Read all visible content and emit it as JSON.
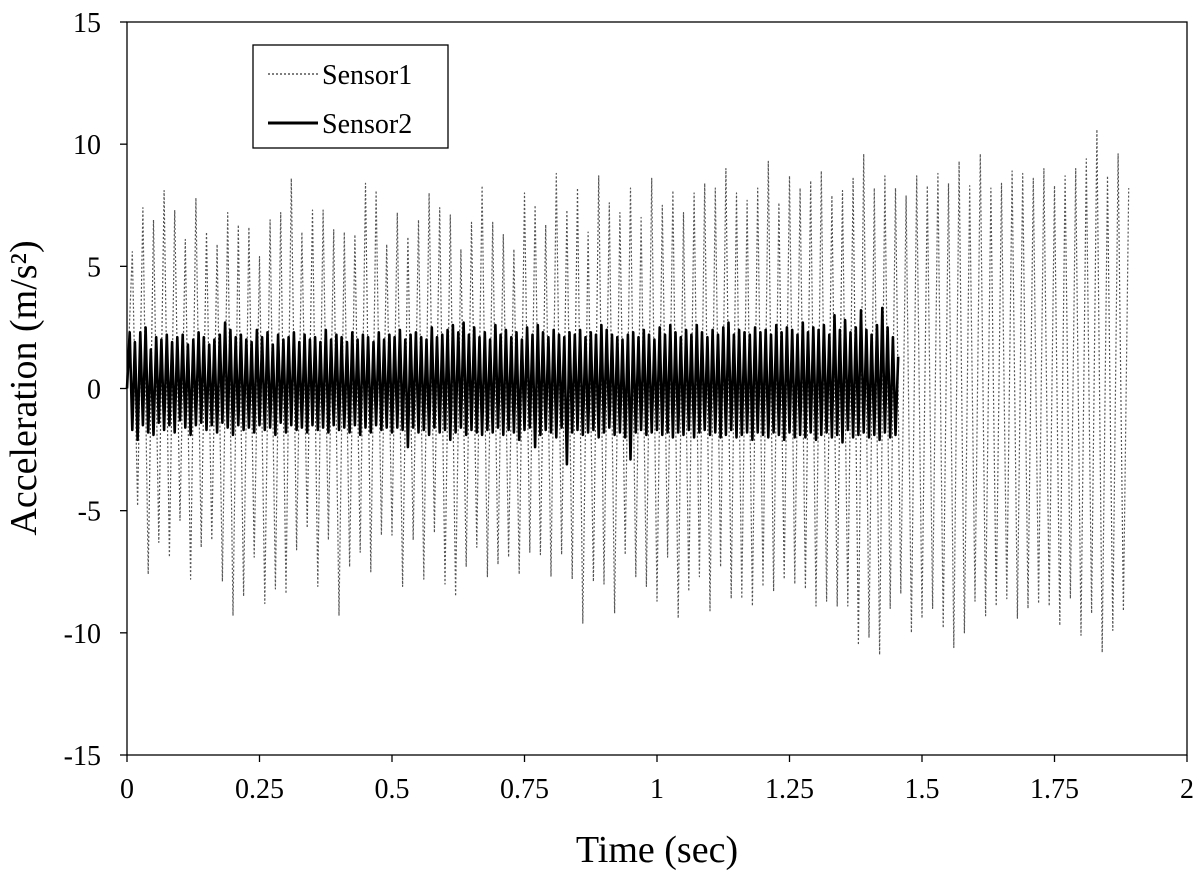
{
  "chart_data": {
    "type": "line",
    "title": "",
    "xlabel": "Time (sec)",
    "ylabel": "Acceleration (m/s²)",
    "xlim": [
      0,
      2
    ],
    "ylim": [
      -15,
      15
    ],
    "x_ticks": [
      0,
      0.25,
      0.5,
      0.75,
      1,
      1.25,
      1.5,
      1.75,
      2
    ],
    "x_tick_labels": [
      "0",
      "0.25",
      "0.5",
      "0.75",
      "1",
      "1.25",
      "1.5",
      "1.75",
      "2"
    ],
    "y_ticks": [
      15,
      10,
      5,
      0,
      -5,
      -10,
      -15
    ],
    "y_tick_labels": [
      "15",
      "10",
      "5",
      "0",
      "-5",
      "-10",
      "-15"
    ],
    "grid": false,
    "legend_position": "top-left",
    "series": [
      {
        "name": "Sensor1",
        "style": "dotted",
        "color": "#555555",
        "x_start": 0,
        "x_step": 0.01,
        "values": [
          0.0,
          5.6,
          -4.8,
          7.4,
          -7.6,
          6.9,
          -6.3,
          8.1,
          -6.9,
          7.3,
          -5.4,
          6.1,
          -7.8,
          7.8,
          -6.5,
          6.4,
          -6.2,
          5.9,
          -7.9,
          7.2,
          -9.3,
          6.7,
          -8.5,
          6.6,
          -6.9,
          5.4,
          -8.8,
          6.9,
          -8.2,
          7.2,
          -8.4,
          8.6,
          -6.6,
          6.4,
          -5.7,
          7.3,
          -8.1,
          7.3,
          -6.2,
          6.5,
          -9.3,
          6.4,
          -7.3,
          6.3,
          -6.7,
          8.4,
          -7.5,
          8.1,
          -6.0,
          5.9,
          -6.0,
          7.2,
          -8.1,
          6.2,
          -6.2,
          6.9,
          -7.8,
          8.0,
          -5.9,
          7.4,
          -8.0,
          7.1,
          -8.5,
          5.7,
          -7.3,
          6.8,
          -6.5,
          8.3,
          -7.7,
          6.8,
          -7.2,
          6.3,
          -6.9,
          5.7,
          -7.6,
          8.0,
          -6.7,
          7.5,
          -6.8,
          6.7,
          -7.7,
          8.8,
          -6.8,
          7.3,
          -7.8,
          8.2,
          -9.6,
          6.4,
          -7.9,
          8.7,
          -8.0,
          7.6,
          -9.2,
          7.2,
          -6.8,
          8.2,
          -7.7,
          7.0,
          -8.1,
          8.6,
          -8.7,
          7.5,
          -6.9,
          8.1,
          -9.4,
          7.2,
          -8.3,
          8.0,
          -7.7,
          8.4,
          -9.1,
          8.2,
          -7.3,
          9.0,
          -8.6,
          8.0,
          -8.6,
          7.7,
          -8.9,
          8.2,
          -8.1,
          9.3,
          -8.3,
          7.6,
          -7.8,
          8.7,
          -8.0,
          8.2,
          -8.2,
          8.5,
          -8.9,
          8.9,
          -8.7,
          7.9,
          -8.9,
          8.1,
          -8.9,
          8.6,
          -10.5,
          9.6,
          -10.2,
          8.2,
          -10.9,
          8.7,
          -9.0,
          8.2,
          -8.4,
          7.9,
          -10.0,
          8.7,
          -9.4,
          8.3,
          -9.0,
          8.8,
          -9.8,
          8.4,
          -10.6,
          9.3,
          -10.0,
          8.3,
          -8.7,
          9.6,
          -9.3,
          8.2,
          -8.9,
          8.4,
          -8.6,
          8.9,
          -9.4,
          8.8,
          -9.0,
          8.6,
          -8.8,
          9.0,
          -8.9,
          8.3,
          -9.7,
          8.7,
          -8.6,
          9.0,
          -10.1,
          9.4,
          -9.2,
          10.6,
          -10.8,
          8.7,
          -9.9,
          9.6,
          -9.1,
          8.2
        ]
      },
      {
        "name": "Sensor2",
        "style": "solid",
        "color": "#000000",
        "x_start": 0,
        "x_step": 0.005,
        "values": [
          0.0,
          2.3,
          -1.7,
          1.9,
          -2.1,
          2.3,
          -1.5,
          2.5,
          -1.8,
          1.6,
          -1.9,
          2.1,
          -1.4,
          2.0,
          -1.7,
          2.2,
          -1.5,
          1.9,
          -1.8,
          2.1,
          -1.3,
          2.2,
          -1.6,
          1.8,
          -1.9,
          2.0,
          -1.5,
          2.3,
          -1.4,
          2.1,
          -1.7,
          1.8,
          -1.5,
          2.0,
          -1.8,
          2.2,
          -1.4,
          2.7,
          -1.6,
          2.4,
          -1.9,
          2.1,
          -1.5,
          2.2,
          -1.7,
          2.0,
          -1.6,
          1.9,
          -1.8,
          2.4,
          -1.5,
          2.1,
          -1.7,
          2.3,
          -1.6,
          1.8,
          -1.9,
          2.2,
          -1.4,
          2.0,
          -1.8,
          2.1,
          -1.5,
          2.3,
          -1.7,
          1.9,
          -1.6,
          2.2,
          -1.8,
          2.0,
          -1.5,
          2.1,
          -1.7,
          1.9,
          -1.6,
          2.4,
          -1.8,
          2.0,
          -1.5,
          2.2,
          -1.7,
          2.1,
          -1.6,
          1.9,
          -1.8,
          2.3,
          -1.5,
          2.0,
          -1.9,
          2.2,
          -1.6,
          2.1,
          -1.8,
          1.9,
          -1.5,
          2.3,
          -1.7,
          2.0,
          -1.6,
          2.2,
          -1.8,
          2.1,
          -1.6,
          2.4,
          -1.7,
          2.0,
          -2.4,
          2.2,
          -1.6,
          2.3,
          -1.8,
          2.1,
          -1.7,
          2.0,
          -1.9,
          2.5,
          -1.6,
          2.1,
          -1.8,
          2.2,
          -1.7,
          2.4,
          -2.1,
          2.6,
          -1.8,
          2.3,
          -1.6,
          2.7,
          -1.9,
          2.2,
          -1.7,
          2.5,
          -1.8,
          2.1,
          -1.9,
          2.3,
          -1.7,
          2.0,
          -1.8,
          2.6,
          -1.6,
          2.2,
          -1.9,
          2.4,
          -1.7,
          2.1,
          -1.8,
          2.3,
          -2.1,
          2.0,
          -1.7,
          2.5,
          -1.6,
          2.2,
          -2.4,
          2.6,
          -1.9,
          2.3,
          -1.7,
          2.1,
          -1.8,
          2.4,
          -2.0,
          2.2,
          -1.6,
          2.1,
          -3.1,
          2.3,
          -1.8,
          2.2,
          -1.7,
          2.4,
          -1.9,
          2.1,
          -1.8,
          2.3,
          -1.7,
          2.2,
          -2.0,
          2.6,
          -1.8,
          2.4,
          -1.6,
          2.2,
          -1.9,
          2.1,
          -1.8,
          2.0,
          -2.0,
          2.2,
          -2.9,
          2.3,
          -1.8,
          2.1,
          -1.7,
          2.4,
          -1.9,
          2.2,
          -1.8,
          2.0,
          -1.7,
          2.5,
          -1.9,
          2.2,
          -1.8,
          2.6,
          -2.0,
          2.3,
          -1.8,
          2.1,
          -1.9,
          2.4,
          -1.7,
          2.2,
          -2.0,
          2.6,
          -1.8,
          2.3,
          -1.7,
          2.1,
          -1.9,
          2.4,
          -1.8,
          2.2,
          -2.0,
          2.5,
          -1.9,
          2.7,
          -1.7,
          2.2,
          -2.0,
          2.4,
          -1.9,
          2.3,
          -1.8,
          2.2,
          -2.1,
          2.5,
          -1.8,
          2.3,
          -1.9,
          2.4,
          -2.0,
          2.2,
          -1.8,
          2.6,
          -1.9,
          2.3,
          -2.1,
          2.5,
          -1.8,
          2.4,
          -2.0,
          2.2,
          -1.9,
          2.7,
          -2.0,
          2.3,
          -1.8,
          2.5,
          -2.1,
          2.4,
          -1.9,
          2.6,
          -1.8,
          2.2,
          -2.0,
          3.0,
          -1.9,
          2.4,
          -2.2,
          2.8,
          -1.7,
          2.3,
          -2.0,
          2.5,
          -1.9,
          3.2,
          -1.8,
          2.4,
          -2.0,
          2.2,
          -1.9,
          2.6,
          -2.1,
          3.3,
          -1.8,
          2.5,
          -2.0,
          2.1,
          -1.9,
          1.3
        ]
      }
    ]
  }
}
